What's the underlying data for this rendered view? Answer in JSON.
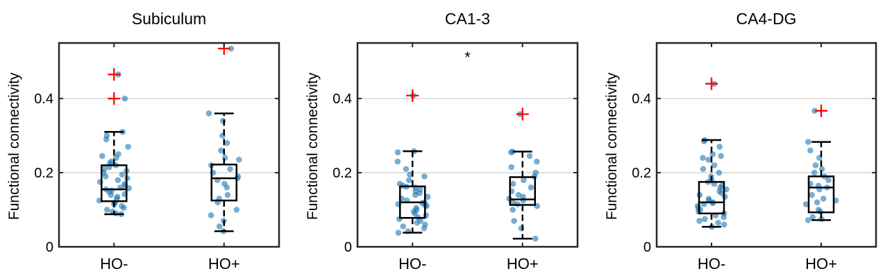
{
  "chart_data": [
    {
      "type": "box",
      "title": "Subiculum",
      "ylabel": "Functional connectivity",
      "xlabel": "",
      "ylim": [
        0,
        0.55
      ],
      "yticks": [
        0,
        0.2,
        0.4
      ],
      "ytick_labels": [
        "0",
        "0.2",
        "0.4"
      ],
      "grid": "y",
      "categories": [
        "HO-",
        "HO+"
      ],
      "annotation": "",
      "colors": {
        "points": "#1f77b4",
        "outlier": "#ff0000",
        "box": "#000000",
        "grid": "#d9d9d9"
      },
      "groups": [
        {
          "name": "HO-",
          "q1": 0.123,
          "median": 0.155,
          "q3": 0.22,
          "whisker_low": 0.088,
          "whisker_high": 0.31,
          "outliers": [
            0.4,
            0.465
          ],
          "points": [
            0.088,
            0.09,
            0.095,
            0.1,
            0.105,
            0.11,
            0.115,
            0.118,
            0.12,
            0.125,
            0.13,
            0.135,
            0.14,
            0.142,
            0.148,
            0.152,
            0.155,
            0.158,
            0.16,
            0.165,
            0.17,
            0.175,
            0.18,
            0.185,
            0.19,
            0.195,
            0.2,
            0.205,
            0.21,
            0.215,
            0.22,
            0.225,
            0.23,
            0.24,
            0.245,
            0.25,
            0.27,
            0.29,
            0.3,
            0.31,
            0.4,
            0.465
          ]
        },
        {
          "name": "HO+",
          "q1": 0.125,
          "median": 0.185,
          "q3": 0.222,
          "whisker_low": 0.042,
          "whisker_high": 0.36,
          "outliers": [
            0.535
          ],
          "points": [
            0.042,
            0.055,
            0.07,
            0.085,
            0.1,
            0.12,
            0.13,
            0.14,
            0.16,
            0.17,
            0.18,
            0.185,
            0.19,
            0.2,
            0.21,
            0.22,
            0.235,
            0.24,
            0.26,
            0.28,
            0.3,
            0.34,
            0.36,
            0.535
          ]
        }
      ]
    },
    {
      "type": "box",
      "title": "CA1-3",
      "ylabel": "Functional connectivity",
      "xlabel": "",
      "ylim": [
        0,
        0.55
      ],
      "yticks": [
        0,
        0.2,
        0.4
      ],
      "ytick_labels": [
        "0",
        "0.2",
        "0.4"
      ],
      "grid": "y",
      "categories": [
        "HO-",
        "HO+"
      ],
      "annotation": "*",
      "colors": {
        "points": "#1f77b4",
        "outlier": "#ff0000",
        "box": "#000000",
        "grid": "#d9d9d9"
      },
      "groups": [
        {
          "name": "HO-",
          "q1": 0.078,
          "median": 0.12,
          "q3": 0.163,
          "whisker_low": 0.038,
          "whisker_high": 0.258,
          "outliers": [
            0.408
          ],
          "points": [
            0.038,
            0.042,
            0.05,
            0.055,
            0.06,
            0.065,
            0.07,
            0.075,
            0.08,
            0.085,
            0.09,
            0.095,
            0.1,
            0.105,
            0.11,
            0.112,
            0.115,
            0.118,
            0.12,
            0.125,
            0.13,
            0.135,
            0.14,
            0.145,
            0.15,
            0.155,
            0.16,
            0.162,
            0.165,
            0.17,
            0.18,
            0.19,
            0.195,
            0.21,
            0.23,
            0.255,
            0.258,
            0.408
          ]
        },
        {
          "name": "HO+",
          "q1": 0.113,
          "median": 0.128,
          "q3": 0.188,
          "whisker_low": 0.022,
          "whisker_high": 0.257,
          "outliers": [
            0.358
          ],
          "points": [
            0.022,
            0.05,
            0.07,
            0.1,
            0.11,
            0.115,
            0.12,
            0.125,
            0.13,
            0.135,
            0.14,
            0.15,
            0.16,
            0.17,
            0.18,
            0.19,
            0.2,
            0.215,
            0.23,
            0.245,
            0.255,
            0.257,
            0.358
          ]
        }
      ]
    },
    {
      "type": "box",
      "title": "CA4-DG",
      "ylabel": "Functional connectivity",
      "xlabel": "",
      "ylim": [
        0,
        0.55
      ],
      "yticks": [
        0,
        0.2,
        0.4
      ],
      "ytick_labels": [
        "0",
        "0.2",
        "0.4"
      ],
      "grid": "y",
      "categories": [
        "HO-",
        "HO+"
      ],
      "annotation": "",
      "colors": {
        "points": "#1f77b4",
        "outlier": "#ff0000",
        "box": "#000000",
        "grid": "#d9d9d9"
      },
      "groups": [
        {
          "name": "HO-",
          "q1": 0.09,
          "median": 0.12,
          "q3": 0.175,
          "whisker_low": 0.054,
          "whisker_high": 0.288,
          "outliers": [
            0.44
          ],
          "points": [
            0.054,
            0.06,
            0.065,
            0.07,
            0.075,
            0.08,
            0.085,
            0.09,
            0.095,
            0.1,
            0.105,
            0.11,
            0.115,
            0.118,
            0.12,
            0.125,
            0.13,
            0.135,
            0.14,
            0.145,
            0.15,
            0.155,
            0.16,
            0.165,
            0.17,
            0.175,
            0.18,
            0.19,
            0.2,
            0.21,
            0.22,
            0.235,
            0.24,
            0.245,
            0.25,
            0.27,
            0.285,
            0.288,
            0.44
          ]
        },
        {
          "name": "HO+",
          "q1": 0.093,
          "median": 0.16,
          "q3": 0.19,
          "whisker_low": 0.072,
          "whisker_high": 0.283,
          "outliers": [
            0.367
          ],
          "points": [
            0.072,
            0.075,
            0.08,
            0.095,
            0.1,
            0.115,
            0.12,
            0.125,
            0.13,
            0.14,
            0.155,
            0.16,
            0.165,
            0.17,
            0.18,
            0.19,
            0.2,
            0.21,
            0.22,
            0.24,
            0.26,
            0.283,
            0.367
          ]
        }
      ]
    }
  ]
}
